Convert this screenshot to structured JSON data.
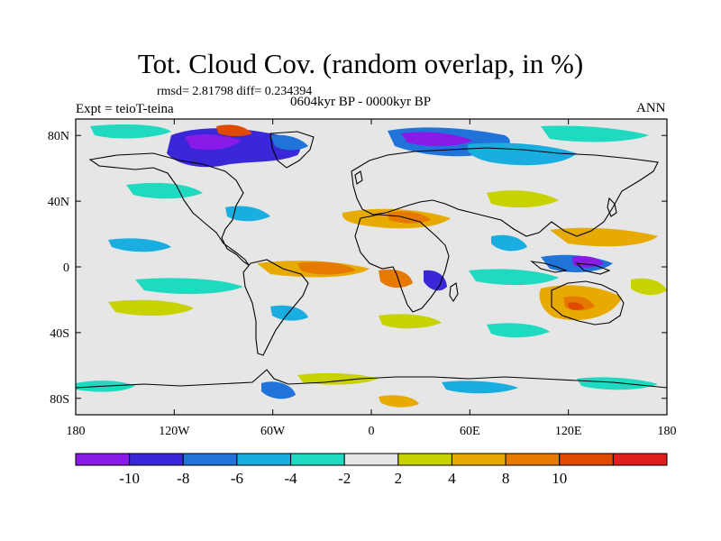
{
  "title": "Tot. Cloud Cov. (random overlap, in %)",
  "stats": "rmsd= 2.81798 diff= 0.234394",
  "period": "0604kyr BP - 0000kyr BP",
  "experiment": "Expt = teioT-teina",
  "season": "ANN",
  "map": {
    "lon_ticks": [
      "180",
      "120W",
      "60W",
      "0",
      "60E",
      "120E",
      "180"
    ],
    "lat_ticks": [
      "80N",
      "40N",
      "0",
      "40S",
      "80S"
    ],
    "lat_values": [
      80,
      40,
      0,
      -40,
      -80
    ],
    "lat_range": [
      -90,
      90
    ],
    "lon_range": [
      -180,
      180
    ],
    "background_color": "#e6e6e6"
  },
  "colorbar": {
    "labels": [
      "-10",
      "-8",
      "-6",
      "-4",
      "-2",
      "2",
      "4",
      "8",
      "10"
    ],
    "colors": [
      "#8a1ae8",
      "#3a28d8",
      "#1f73d9",
      "#1aaee0",
      "#1fd9c0",
      "#e6e6e6",
      "#c8d200",
      "#e6aa00",
      "#e67a00",
      "#e04a00",
      "#e01e1e"
    ]
  }
}
